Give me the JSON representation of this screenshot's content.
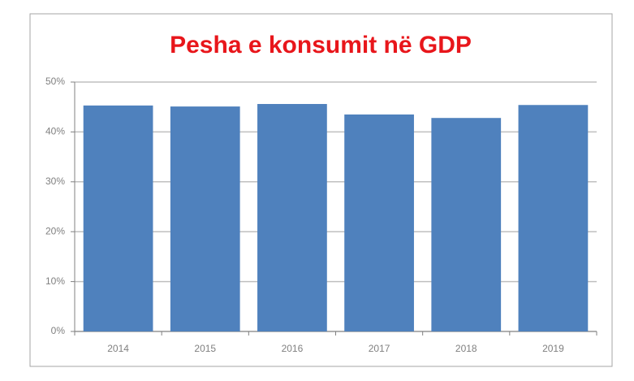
{
  "chart_data": {
    "type": "bar",
    "title": "Pesha e konsumit në GDP",
    "categories": [
      "2014",
      "2015",
      "2016",
      "2017",
      "2018",
      "2019"
    ],
    "values": [
      45.3,
      45.1,
      45.6,
      43.5,
      42.8,
      45.4
    ],
    "color": "#4f81bd",
    "ylim": [
      0,
      50
    ],
    "yticks": [
      {
        "value": 0,
        "label": "0%"
      },
      {
        "value": 10,
        "label": "10%"
      },
      {
        "value": 20,
        "label": "20%"
      },
      {
        "value": 30,
        "label": "30%"
      },
      {
        "value": 40,
        "label": "40%"
      },
      {
        "value": 50,
        "label": "50%"
      }
    ],
    "grid": true
  }
}
